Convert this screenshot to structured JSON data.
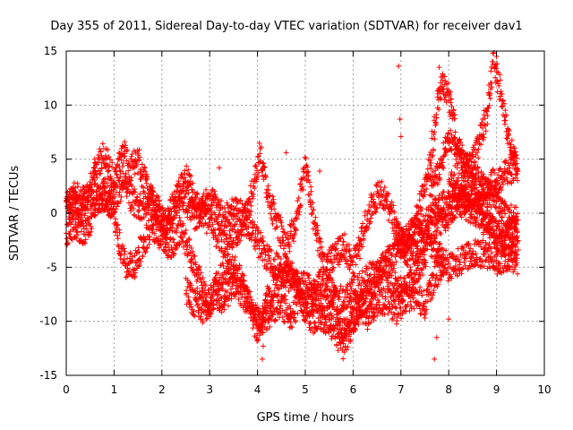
{
  "chart_data": {
    "type": "scatter",
    "title": "Day 355 of 2011, Sidereal Day-to-day VTEC variation (SDTVAR) for receiver dav1",
    "xlabel": "GPS time / hours",
    "ylabel": "SDTVAR / TECUs",
    "xlim": [
      0,
      10
    ],
    "ylim": [
      -15,
      15
    ],
    "x_ticks": [
      0,
      1,
      2,
      3,
      4,
      5,
      6,
      7,
      8,
      9,
      10
    ],
    "y_ticks": [
      -15,
      -10,
      -5,
      0,
      5,
      10,
      15
    ],
    "grid": true,
    "marker": "+",
    "color": "#ff0000",
    "series": [
      {
        "name": "SDTVAR",
        "tracks": [
          [
            [
              0.0,
              0.5
            ],
            [
              0.2,
              2.0
            ],
            [
              0.4,
              1.0
            ],
            [
              0.6,
              4.0
            ],
            [
              0.8,
              5.5
            ],
            [
              1.0,
              3.0
            ],
            [
              1.2,
              6.0
            ],
            [
              1.3,
              4.0
            ],
            [
              1.5,
              5.0
            ],
            [
              1.7,
              2.0
            ],
            [
              1.9,
              -0.5
            ],
            [
              2.1,
              -1.0
            ],
            [
              2.3,
              1.5
            ],
            [
              2.5,
              3.5
            ],
            [
              2.7,
              1.0
            ],
            [
              2.9,
              -0.5
            ],
            [
              3.1,
              -1.5
            ],
            [
              3.3,
              -3.0
            ],
            [
              3.5,
              -2.0
            ],
            [
              3.7,
              -1.0
            ],
            [
              3.9,
              2.0
            ],
            [
              4.05,
              5.5
            ],
            [
              4.2,
              2.0
            ],
            [
              4.4,
              -1.0
            ],
            [
              4.6,
              -3.0
            ],
            [
              4.8,
              -1.0
            ],
            [
              5.0,
              4.5
            ],
            [
              5.2,
              -1.0
            ],
            [
              5.4,
              -5.0
            ],
            [
              5.6,
              -4.0
            ],
            [
              5.8,
              -3.0
            ],
            [
              6.0,
              -5.0
            ],
            [
              6.2,
              -2.0
            ],
            [
              6.4,
              1.0
            ],
            [
              6.6,
              2.0
            ],
            [
              6.8,
              0.0
            ],
            [
              7.0,
              -3.0
            ],
            [
              7.2,
              -4.0
            ],
            [
              7.4,
              -3.0
            ],
            [
              7.6,
              -2.0
            ],
            [
              7.8,
              -1.0
            ],
            [
              8.0,
              0.0
            ],
            [
              8.2,
              1.0
            ],
            [
              8.4,
              0.5
            ],
            [
              8.6,
              0.0
            ],
            [
              8.8,
              -1.0
            ],
            [
              9.0,
              -2.0
            ],
            [
              9.2,
              -1.0
            ],
            [
              9.45,
              -1.5
            ]
          ],
          [
            [
              0.0,
              -2.0
            ],
            [
              0.2,
              -1.0
            ],
            [
              0.4,
              -2.0
            ],
            [
              0.6,
              0.5
            ],
            [
              0.8,
              2.0
            ],
            [
              1.0,
              0.0
            ],
            [
              1.2,
              -4.5
            ],
            [
              1.4,
              -5.0
            ],
            [
              1.6,
              -3.0
            ],
            [
              1.8,
              -1.0
            ],
            [
              2.0,
              -2.5
            ],
            [
              2.2,
              -3.0
            ],
            [
              2.4,
              -1.5
            ],
            [
              2.6,
              -4.0
            ],
            [
              2.8,
              -6.5
            ],
            [
              3.0,
              -8.5
            ],
            [
              3.2,
              -6.0
            ],
            [
              3.4,
              -5.0
            ],
            [
              3.6,
              -5.5
            ],
            [
              3.8,
              -8.0
            ],
            [
              4.0,
              -11.0
            ],
            [
              4.2,
              -8.0
            ],
            [
              4.4,
              -6.5
            ],
            [
              4.6,
              -5.0
            ],
            [
              4.8,
              -6.0
            ],
            [
              5.0,
              -9.0
            ],
            [
              5.2,
              -7.0
            ],
            [
              5.4,
              -6.0
            ],
            [
              5.6,
              -7.5
            ],
            [
              5.8,
              -12.5
            ],
            [
              6.0,
              -10.0
            ],
            [
              6.2,
              -8.0
            ],
            [
              6.4,
              -7.0
            ],
            [
              6.6,
              -5.0
            ],
            [
              6.8,
              -6.0
            ],
            [
              7.0,
              -7.0
            ],
            [
              7.2,
              -6.5
            ],
            [
              7.4,
              -5.0
            ],
            [
              7.6,
              -3.0
            ],
            [
              7.8,
              -4.0
            ],
            [
              8.0,
              -5.0
            ],
            [
              8.2,
              -4.5
            ],
            [
              8.4,
              -4.0
            ],
            [
              8.6,
              -3.5
            ],
            [
              8.8,
              -4.0
            ],
            [
              9.0,
              -4.5
            ],
            [
              9.2,
              -4.0
            ],
            [
              9.45,
              -4.5
            ]
          ],
          [
            [
              0.0,
              1.5
            ],
            [
              0.3,
              0.0
            ],
            [
              0.6,
              2.5
            ],
            [
              0.9,
              1.0
            ],
            [
              1.2,
              2.5
            ],
            [
              1.5,
              0.5
            ],
            [
              1.8,
              1.5
            ],
            [
              2.1,
              -1.5
            ],
            [
              2.4,
              2.0
            ],
            [
              2.7,
              -0.5
            ],
            [
              3.0,
              1.5
            ],
            [
              3.3,
              -0.5
            ],
            [
              3.6,
              0.5
            ],
            [
              3.9,
              -2.0
            ],
            [
              4.2,
              -4.0
            ],
            [
              4.5,
              -5.5
            ],
            [
              4.8,
              -6.5
            ],
            [
              5.1,
              -7.0
            ],
            [
              5.4,
              -9.0
            ],
            [
              5.7,
              -8.0
            ],
            [
              6.0,
              -7.5
            ],
            [
              6.3,
              -6.0
            ],
            [
              6.6,
              -5.0
            ],
            [
              6.9,
              -3.5
            ],
            [
              7.2,
              -2.0
            ],
            [
              7.5,
              -1.0
            ],
            [
              7.8,
              0.5
            ],
            [
              8.1,
              1.5
            ],
            [
              8.4,
              2.5
            ],
            [
              8.7,
              2.0
            ],
            [
              9.0,
              3.0
            ],
            [
              9.3,
              4.0
            ],
            [
              9.45,
              4.5
            ]
          ],
          [
            [
              2.5,
              -7.0
            ],
            [
              2.7,
              -8.5
            ],
            [
              2.9,
              -9.0
            ],
            [
              3.1,
              -7.5
            ],
            [
              3.3,
              -8.0
            ],
            [
              3.5,
              -6.5
            ],
            [
              3.7,
              -7.5
            ],
            [
              3.9,
              -9.0
            ],
            [
              4.1,
              -10.0
            ],
            [
              4.3,
              -9.0
            ],
            [
              4.5,
              -8.5
            ],
            [
              4.7,
              -9.5
            ],
            [
              4.9,
              -8.0
            ],
            [
              5.1,
              -10.0
            ],
            [
              5.3,
              -9.5
            ],
            [
              5.5,
              -10.0
            ],
            [
              5.7,
              -11.5
            ],
            [
              5.9,
              -10.5
            ],
            [
              6.1,
              -9.0
            ],
            [
              6.3,
              -9.5
            ],
            [
              6.5,
              -8.5
            ],
            [
              6.7,
              -8.0
            ],
            [
              6.9,
              -9.0
            ],
            [
              7.1,
              -8.0
            ],
            [
              7.3,
              -7.5
            ],
            [
              7.5,
              -8.5
            ],
            [
              7.7,
              -6.0
            ],
            [
              7.9,
              -4.5
            ]
          ],
          [
            [
              6.9,
              -2.0
            ],
            [
              7.1,
              -3.0
            ],
            [
              7.3,
              -1.0
            ],
            [
              7.5,
              2.0
            ],
            [
              7.65,
              6.0
            ],
            [
              7.75,
              10.0
            ],
            [
              7.9,
              12.0
            ],
            [
              8.05,
              10.0
            ],
            [
              8.2,
              6.0
            ],
            [
              8.4,
              4.0
            ],
            [
              8.6,
              6.0
            ],
            [
              8.8,
              9.0
            ],
            [
              8.95,
              14.0
            ],
            [
              9.05,
              12.0
            ],
            [
              9.2,
              8.0
            ],
            [
              9.35,
              5.0
            ],
            [
              9.45,
              4.0
            ]
          ],
          [
            [
              7.6,
              2.0
            ],
            [
              7.8,
              4.0
            ],
            [
              8.0,
              7.0
            ],
            [
              8.2,
              5.0
            ],
            [
              8.4,
              4.5
            ],
            [
              8.6,
              3.0
            ],
            [
              8.8,
              2.0
            ],
            [
              9.0,
              1.0
            ],
            [
              9.2,
              0.0
            ],
            [
              9.45,
              -0.5
            ]
          ],
          [
            [
              8.0,
              3.0
            ],
            [
              8.2,
              2.0
            ],
            [
              8.4,
              1.0
            ],
            [
              8.6,
              0.5
            ],
            [
              8.8,
              -0.5
            ],
            [
              9.0,
              -2.0
            ],
            [
              9.2,
              -3.0
            ],
            [
              9.45,
              -3.5
            ]
          ]
        ],
        "outliers": [
          [
            6.95,
            13.6
          ],
          [
            6.98,
            8.7
          ],
          [
            7.0,
            7.1
          ],
          [
            4.6,
            5.6
          ],
          [
            4.1,
            -13.5
          ],
          [
            4.12,
            -12.3
          ],
          [
            7.7,
            -13.5
          ],
          [
            7.75,
            -11.5
          ],
          [
            8.0,
            -9.8
          ],
          [
            5.3,
            3.9
          ],
          [
            2.62,
            -5.0
          ],
          [
            3.2,
            4.2
          ],
          [
            7.8,
            13.5
          ],
          [
            9.0,
            14.5
          ]
        ]
      }
    ]
  }
}
